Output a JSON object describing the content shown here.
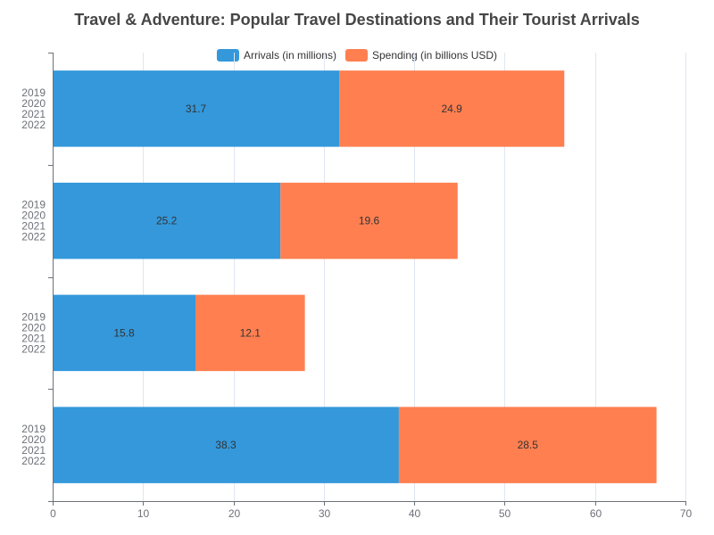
{
  "chart_data": {
    "type": "bar",
    "orientation": "horizontal",
    "stacked": true,
    "title": "Travel & Adventure: Popular Travel Destinations and Their Tourist Arrivals",
    "category_lines": [
      [
        "2019",
        "2020",
        "2021",
        "2022"
      ],
      [
        "2019",
        "2020",
        "2021",
        "2022"
      ],
      [
        "2019",
        "2020",
        "2021",
        "2022"
      ],
      [
        "2019",
        "2020",
        "2021",
        "2022"
      ]
    ],
    "series": [
      {
        "name": "Arrivals (in millions)",
        "color": "#3498db",
        "values": [
          31.7,
          25.2,
          15.8,
          38.3
        ]
      },
      {
        "name": "Spending (in billions USD)",
        "color": "#ff7f50",
        "values": [
          24.9,
          19.6,
          12.1,
          28.5
        ]
      }
    ],
    "xlim": [
      0,
      70
    ],
    "xticks": [
      0,
      10,
      20,
      30,
      40,
      50,
      60,
      70
    ],
    "grid": true,
    "legend_position": "top-center"
  }
}
